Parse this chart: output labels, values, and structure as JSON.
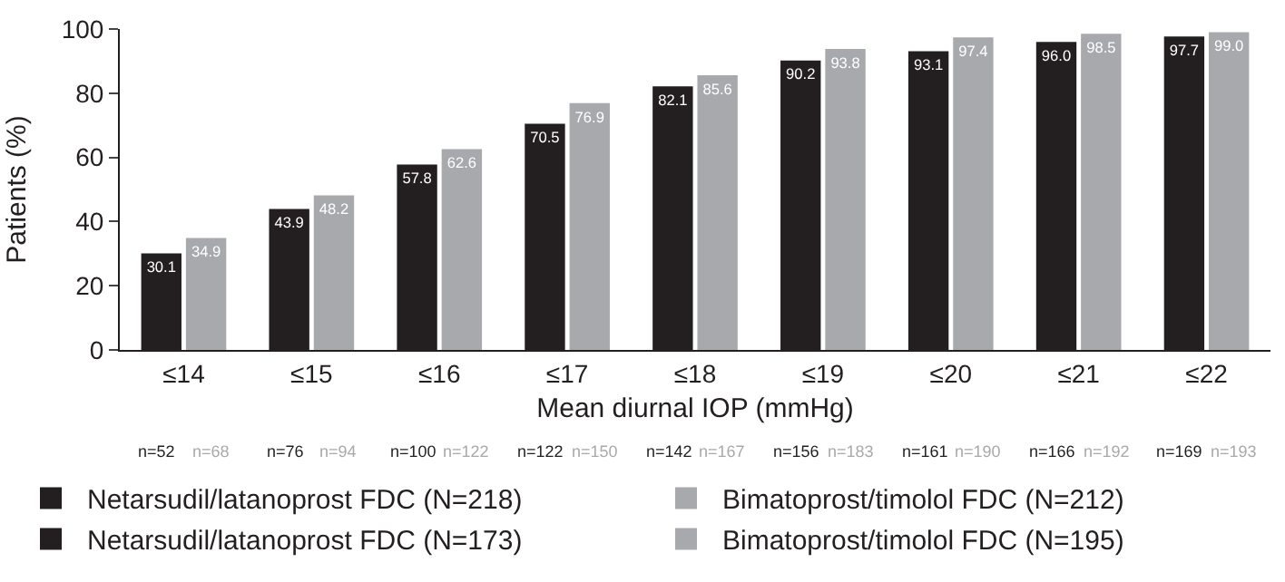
{
  "chart_data": {
    "type": "bar",
    "xlabel": "Mean diurnal IOP (mmHg)",
    "ylabel": "Patients (%)",
    "categories": [
      "≤14",
      "≤15",
      "≤16",
      "≤17",
      "≤18",
      "≤19",
      "≤20",
      "≤21",
      "≤22"
    ],
    "series": [
      {
        "name": "Netarsudil/latanoprost FDC (N=218)",
        "color": "#231f20",
        "values": [
          30.1,
          43.9,
          57.8,
          70.5,
          82.1,
          90.2,
          93.1,
          96.0,
          97.7
        ],
        "value_labels": [
          "30.1",
          "43.9",
          "57.8",
          "70.5",
          "82.1",
          "90.2",
          "93.1",
          "96.0",
          "97.7"
        ]
      },
      {
        "name": "Bimatoprost/timolol FDC (N=212)",
        "color": "#a7a9ac",
        "values": [
          34.9,
          48.2,
          62.6,
          76.9,
          85.6,
          93.8,
          97.4,
          98.5,
          99.0
        ],
        "value_labels": [
          "34.9",
          "48.2",
          "62.6",
          "76.9",
          "85.6",
          "93.8",
          "97.4",
          "98.5",
          "99.0"
        ]
      },
      {
        "name": "Netarsudil/latanoprost FDC (N=173)",
        "color": "#231f20",
        "values": [
          null,
          null,
          null,
          null,
          null,
          null,
          null,
          null,
          null
        ]
      },
      {
        "name": "Bimatoprost/timolol FDC (N=195)",
        "color": "#a7a9ac",
        "values": [
          null,
          null,
          null,
          null,
          null,
          null,
          null,
          null,
          null
        ]
      }
    ],
    "ylim": [
      0,
      100
    ],
    "yticks": [
      0,
      20,
      40,
      60,
      80,
      100
    ],
    "legend": "bottom",
    "annotations": [
      "n=52",
      "n=68",
      "n=76",
      "n=94",
      "n=100",
      "n=122",
      "n=122",
      "n=150",
      "n=142",
      "n=167",
      "n=156",
      "n=183",
      "n=161",
      "n=190",
      "n=166",
      "n=192",
      "n=169",
      "n=193"
    ]
  }
}
